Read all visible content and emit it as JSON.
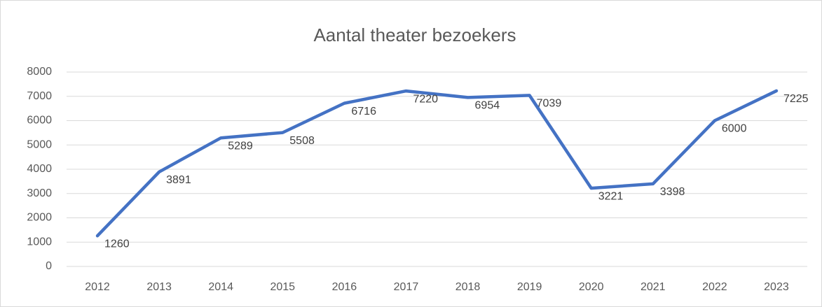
{
  "chart_data": {
    "type": "line",
    "title": "Aantal theater bezoekers",
    "categories": [
      "2012",
      "2013",
      "2014",
      "2015",
      "2016",
      "2017",
      "2018",
      "2019",
      "2020",
      "2021",
      "2022",
      "2023"
    ],
    "values": [
      1260,
      3891,
      5289,
      5508,
      6716,
      7220,
      6954,
      7039,
      3221,
      3398,
      6000,
      7225
    ],
    "color": "#4472c4",
    "ylim": [
      0,
      8000
    ],
    "yticks": [
      0,
      1000,
      2000,
      3000,
      4000,
      5000,
      6000,
      7000,
      8000
    ],
    "grid": true
  }
}
